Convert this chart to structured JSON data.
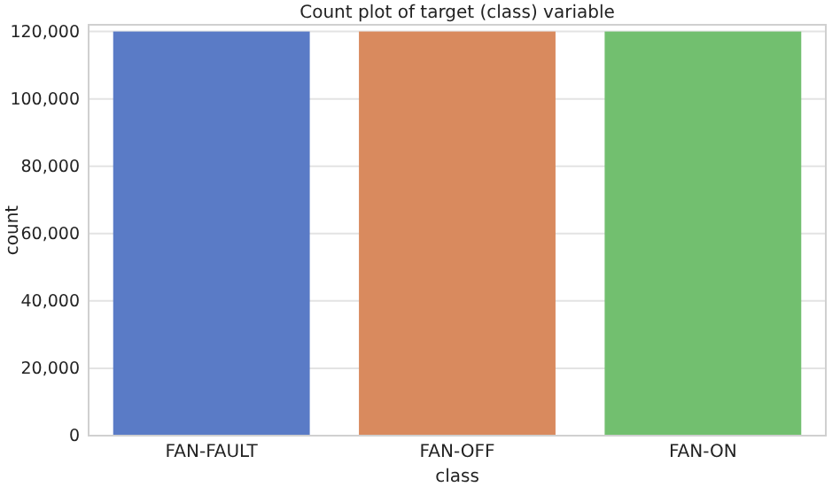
{
  "chart_data": {
    "type": "bar",
    "title": "Count plot of target (class) variable",
    "xlabel": "class",
    "ylabel": "count",
    "categories": [
      "FAN-FAULT",
      "FAN-OFF",
      "FAN-ON"
    ],
    "values": [
      120000,
      120000,
      120000
    ],
    "colors": [
      "#5a7bc6",
      "#d98a5e",
      "#72bf6f"
    ],
    "ylim": [
      0,
      122000
    ],
    "yticks": [
      {
        "value": 0,
        "label": "0"
      },
      {
        "value": 20000,
        "label": "20,000"
      },
      {
        "value": 40000,
        "label": "40,000"
      },
      {
        "value": 60000,
        "label": "60,000"
      },
      {
        "value": 80000,
        "label": "80,000"
      },
      {
        "value": 100000,
        "label": "100,000"
      },
      {
        "value": 120000,
        "label": "120,000"
      }
    ],
    "grid": "y"
  }
}
